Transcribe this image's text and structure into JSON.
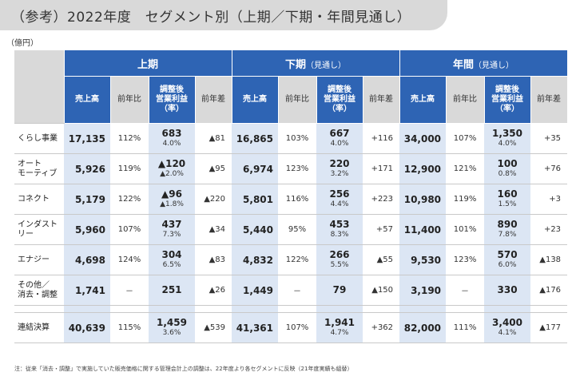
{
  "title": "（参考）2022年度　セグメント別（上期／下期・年間見通し）",
  "unit": "（億円）",
  "groups": [
    {
      "label": "上期",
      "sub": ""
    },
    {
      "label": "下期",
      "sub": "（見通し）"
    },
    {
      "label": "年間",
      "sub": "（見通し）"
    }
  ],
  "columns": {
    "sales": "売上高",
    "yoy": "前年比",
    "op_l1": "調整後",
    "op_l2": "営業利益",
    "op_l3": "（率）",
    "diff": "前年差"
  },
  "rows": [
    {
      "label": "くらし事業",
      "cells": [
        {
          "sales": "17,135",
          "yoy": "112%",
          "op": "683",
          "rate": "4.0%",
          "diff": "▲81"
        },
        {
          "sales": "16,865",
          "yoy": "103%",
          "op": "667",
          "rate": "4.0%",
          "diff": "+116"
        },
        {
          "sales": "34,000",
          "yoy": "107%",
          "op": "1,350",
          "rate": "4.0%",
          "diff": "+35"
        }
      ]
    },
    {
      "label": "オート\nモーティブ",
      "cells": [
        {
          "sales": "5,926",
          "yoy": "119%",
          "op": "▲120",
          "rate": "▲2.0%",
          "diff": "▲95"
        },
        {
          "sales": "6,974",
          "yoy": "123%",
          "op": "220",
          "rate": "3.2%",
          "diff": "+171"
        },
        {
          "sales": "12,900",
          "yoy": "121%",
          "op": "100",
          "rate": "0.8%",
          "diff": "+76"
        }
      ]
    },
    {
      "label": "コネクト",
      "cells": [
        {
          "sales": "5,179",
          "yoy": "122%",
          "op": "▲96",
          "rate": "▲1.8%",
          "diff": "▲220"
        },
        {
          "sales": "5,801",
          "yoy": "116%",
          "op": "256",
          "rate": "4.4%",
          "diff": "+223"
        },
        {
          "sales": "10,980",
          "yoy": "119%",
          "op": "160",
          "rate": "1.5%",
          "diff": "+3"
        }
      ]
    },
    {
      "label": "インダストリー",
      "cells": [
        {
          "sales": "5,960",
          "yoy": "107%",
          "op": "437",
          "rate": "7.3%",
          "diff": "▲34"
        },
        {
          "sales": "5,440",
          "yoy": "95%",
          "op": "453",
          "rate": "8.3%",
          "diff": "+57"
        },
        {
          "sales": "11,400",
          "yoy": "101%",
          "op": "890",
          "rate": "7.8%",
          "diff": "+23"
        }
      ]
    },
    {
      "label": "エナジー",
      "cells": [
        {
          "sales": "4,698",
          "yoy": "124%",
          "op": "304",
          "rate": "6.5%",
          "diff": "▲83"
        },
        {
          "sales": "4,832",
          "yoy": "122%",
          "op": "266",
          "rate": "5.5%",
          "diff": "▲55"
        },
        {
          "sales": "9,530",
          "yoy": "123%",
          "op": "570",
          "rate": "6.0%",
          "diff": "▲138"
        }
      ]
    },
    {
      "label": "その他／\n消去・調整",
      "cells": [
        {
          "sales": "1,741",
          "yoy": "－",
          "op": "251",
          "rate": "",
          "diff": "▲26"
        },
        {
          "sales": "1,449",
          "yoy": "－",
          "op": "79",
          "rate": "",
          "diff": "▲150"
        },
        {
          "sales": "3,190",
          "yoy": "－",
          "op": "330",
          "rate": "",
          "diff": "▲176"
        }
      ]
    }
  ],
  "total": {
    "label": "連結決算",
    "cells": [
      {
        "sales": "40,639",
        "yoy": "115%",
        "op": "1,459",
        "rate": "3.6%",
        "diff": "▲539"
      },
      {
        "sales": "41,361",
        "yoy": "107%",
        "op": "1,941",
        "rate": "4.7%",
        "diff": "+362"
      },
      {
        "sales": "82,000",
        "yoy": "111%",
        "op": "3,400",
        "rate": "4.1%",
        "diff": "▲177"
      }
    ]
  },
  "note": "注：従来「消去・調整」で実施していた販売価格に関する管理会計上の調整は、22年度より各セグメントに反映（21年度実績も組替）"
}
